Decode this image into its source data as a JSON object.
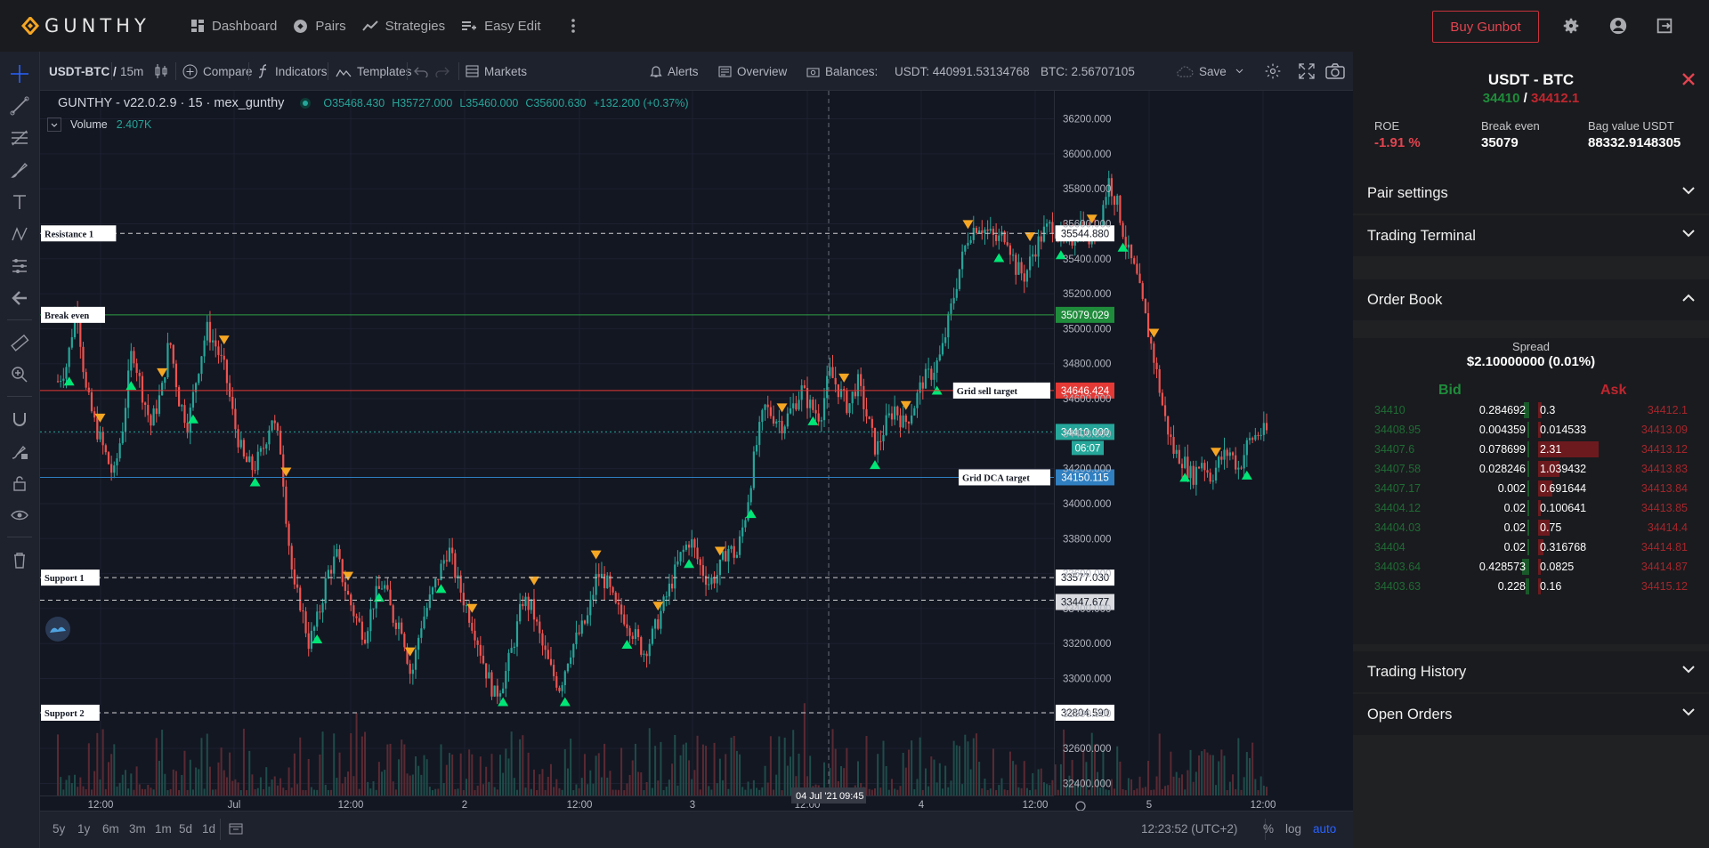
{
  "app": {
    "brand": "GUNTHY",
    "nav": [
      {
        "label": "Dashboard",
        "icon": "dashboard-icon"
      },
      {
        "label": "Pairs",
        "icon": "pairs-icon"
      },
      {
        "label": "Strategies",
        "icon": "strategies-icon"
      },
      {
        "label": "Easy Edit",
        "icon": "easy-edit-icon"
      }
    ],
    "buy_button": "Buy Gunbot",
    "colors": {
      "accent": "#f5a623",
      "bid": "#1f8c3b",
      "ask": "#c0262f",
      "bull": "#26a69a",
      "bear": "#ef5350"
    }
  },
  "toolbar": {
    "symbol": "USDT-BTC /",
    "interval": "15m",
    "compare": "Compare",
    "indicators": "Indicators",
    "templates": "Templates",
    "markets": "Markets",
    "alerts": "Alerts",
    "overview": "Overview",
    "balances": "Balances:",
    "balance_usdt": "USDT: 440991.53134768",
    "balance_btc": "BTC: 2.56707105",
    "save": "Save"
  },
  "legend": {
    "title": "GUNTHY - v22.0.2.9 · 15 · mex_gunthy",
    "open": "O35468.430",
    "high": "H35727.000",
    "low": "L35460.000",
    "close": "C35600.630",
    "change": "+132.200 (+0.37%)",
    "volume_label": "Volume",
    "volume_value": "2.407K"
  },
  "chart_data": {
    "type": "candlestick",
    "y_ticks": [
      "36200.000",
      "36000.000",
      "35800.000",
      "35600.000",
      "35400.000",
      "35200.000",
      "35000.000",
      "34800.000",
      "34600.000",
      "34400.000",
      "34200.000",
      "34000.000",
      "33800.000",
      "33600.000",
      "33400.000",
      "33200.000",
      "33000.000",
      "32800.000",
      "32600.000",
      "32400.000"
    ],
    "ylim": [
      32400,
      36200
    ],
    "x_ticks": [
      "12:00",
      "Jul",
      "12:00",
      "2",
      "12:00",
      "3",
      "12:00",
      "4",
      "12:00",
      "5",
      "12:00"
    ],
    "crosshair": {
      "date": "04 Jul '21",
      "time": "09:45"
    },
    "price_path": [
      [
        0,
        34700
      ],
      [
        0.5,
        34800
      ],
      [
        1,
        35150
      ],
      [
        1.5,
        34650
      ],
      [
        2,
        34450
      ],
      [
        2.5,
        34300
      ],
      [
        3,
        34150
      ],
      [
        3.5,
        34450
      ],
      [
        4,
        34900
      ],
      [
        4.5,
        34650
      ],
      [
        5,
        34450
      ],
      [
        5.6,
        34650
      ],
      [
        6,
        34950
      ],
      [
        6.5,
        34600
      ],
      [
        7,
        34450
      ],
      [
        7.5,
        34750
      ],
      [
        8,
        35000
      ],
      [
        8.5,
        34900
      ],
      [
        9,
        34750
      ],
      [
        9.5,
        34450
      ],
      [
        10,
        34250
      ],
      [
        10.5,
        34200
      ],
      [
        11,
        34300
      ],
      [
        11.5,
        34500
      ],
      [
        12,
        34300
      ],
      [
        12.3,
        33900
      ],
      [
        12.7,
        33500
      ],
      [
        13,
        33450
      ],
      [
        13.5,
        33200
      ],
      [
        14,
        33350
      ],
      [
        14.5,
        33600
      ],
      [
        15,
        33700
      ],
      [
        15.5,
        33500
      ],
      [
        16,
        33350
      ],
      [
        16.5,
        33250
      ],
      [
        17,
        33450
      ],
      [
        17.5,
        33550
      ],
      [
        18,
        33350
      ],
      [
        18.5,
        33300
      ],
      [
        19,
        33000
      ],
      [
        19.5,
        33300
      ],
      [
        20,
        33450
      ],
      [
        20.5,
        33600
      ],
      [
        21,
        33750
      ],
      [
        21.5,
        33550
      ],
      [
        22,
        33400
      ],
      [
        22.5,
        33250
      ],
      [
        23,
        33050
      ],
      [
        23.5,
        32900
      ],
      [
        24,
        33000
      ],
      [
        24.5,
        33200
      ],
      [
        25,
        33450
      ],
      [
        25.5,
        33400
      ],
      [
        26,
        33200
      ],
      [
        26.5,
        33050
      ],
      [
        27,
        32950
      ],
      [
        27.5,
        33150
      ],
      [
        28,
        33250
      ],
      [
        28.5,
        33350
      ],
      [
        29,
        33600
      ],
      [
        29.5,
        33550
      ],
      [
        30,
        33400
      ],
      [
        30.5,
        33350
      ],
      [
        31,
        33250
      ],
      [
        31.5,
        33150
      ],
      [
        32,
        33250
      ],
      [
        32.5,
        33400
      ],
      [
        33,
        33550
      ],
      [
        33.5,
        33700
      ],
      [
        34,
        33800
      ],
      [
        34.5,
        33650
      ],
      [
        35,
        33550
      ],
      [
        35.5,
        33600
      ],
      [
        36,
        33750
      ],
      [
        36.5,
        33700
      ],
      [
        37,
        33950
      ],
      [
        37.5,
        34300
      ],
      [
        38,
        34550
      ],
      [
        38.5,
        34500
      ],
      [
        39,
        34450
      ],
      [
        39.5,
        34550
      ],
      [
        40,
        34650
      ],
      [
        40.5,
        34550
      ],
      [
        41,
        34500
      ],
      [
        41.5,
        34750
      ],
      [
        42,
        34650
      ],
      [
        42.5,
        34550
      ],
      [
        43,
        34700
      ],
      [
        43.5,
        34500
      ],
      [
        44,
        34300
      ],
      [
        44.5,
        34450
      ],
      [
        45,
        34550
      ],
      [
        45.5,
        34450
      ],
      [
        46,
        34550
      ],
      [
        46.5,
        34700
      ],
      [
        47,
        34750
      ],
      [
        47.5,
        34850
      ],
      [
        48,
        35100
      ],
      [
        48.5,
        35350
      ],
      [
        49,
        35550
      ],
      [
        49.5,
        35600
      ],
      [
        50,
        35550
      ],
      [
        50.5,
        35500
      ],
      [
        51,
        35550
      ],
      [
        51.5,
        35350
      ],
      [
        52,
        35300
      ],
      [
        52.5,
        35450
      ],
      [
        53,
        35550
      ],
      [
        53.5,
        35600
      ],
      [
        54,
        35500
      ],
      [
        54.5,
        35500
      ],
      [
        55,
        35600
      ],
      [
        55.5,
        35500
      ],
      [
        56,
        35600
      ],
      [
        56.5,
        35850
      ],
      [
        57,
        35700
      ],
      [
        57.5,
        35450
      ],
      [
        58,
        35300
      ],
      [
        58.5,
        35050
      ],
      [
        59,
        34800
      ],
      [
        59.5,
        34500
      ],
      [
        60,
        34300
      ],
      [
        60.5,
        34250
      ],
      [
        61,
        34150
      ],
      [
        61.5,
        34250
      ],
      [
        62,
        34150
      ],
      [
        62.5,
        34250
      ],
      [
        63,
        34300
      ],
      [
        63.5,
        34200
      ],
      [
        64,
        34350
      ],
      [
        64.5,
        34400
      ],
      [
        65,
        34410
      ]
    ],
    "levels": [
      {
        "name": "Resistance 1",
        "value": "35544.880"
      },
      {
        "name": "Break even",
        "value": "35079.029"
      },
      {
        "name": "Grid sell target",
        "value": "34646.424"
      },
      {
        "name": "current price",
        "value": "34410.000",
        "countdown": "06:07"
      },
      {
        "name": "Grid DCA target",
        "value": "34150.115"
      },
      {
        "name": "Support 1",
        "value": "33577.030"
      },
      {
        "name": "",
        "value": "33447.677"
      },
      {
        "name": "Support 2",
        "value": "32804.590"
      }
    ]
  },
  "bottombar": {
    "ranges": [
      "5y",
      "1y",
      "6m",
      "3m",
      "1m",
      "5d",
      "1d"
    ],
    "clock": "12:23:52 (UTC+2)",
    "percent": "%",
    "log": "log",
    "auto": "auto"
  },
  "panel": {
    "pair": "USDT - BTC",
    "bid_price": "34410",
    "separator": "/",
    "ask_price": "34412.1",
    "roe_label": "ROE",
    "roe_value": "-1.91 %",
    "breakeven_label": "Break even",
    "breakeven_value": "35079",
    "bag_label": "Bag value USDT",
    "bag_value": "88332.9148305",
    "sections": {
      "pair_settings": "Pair settings",
      "trading_terminal": "Trading Terminal",
      "order_book": "Order Book",
      "trading_history": "Trading History",
      "open_orders": "Open Orders"
    },
    "order_book": {
      "spread_label": "Spread",
      "spread_value": "$2.10000000 (0.01%)",
      "bid_header": "Bid",
      "ask_header": "Ask",
      "rows": [
        {
          "bid": "34410",
          "bid_size": "0.284692",
          "ask_size": "0.3",
          "ask": "34412.1",
          "bid_frac": 0.07,
          "ask_frac": 0.05
        },
        {
          "bid": "34408.95",
          "bid_size": "0.004359",
          "ask_size": "0.014533",
          "ask": "34413.09",
          "bid_frac": 0.01,
          "ask_frac": 0.01
        },
        {
          "bid": "34407.6",
          "bid_size": "0.078699",
          "ask_size": "2.31",
          "ask": "34413.12",
          "bid_frac": 0.02,
          "ask_frac": 0.85
        },
        {
          "bid": "34407.58",
          "bid_size": "0.028246",
          "ask_size": "1.039432",
          "ask": "34413.83",
          "bid_frac": 0.01,
          "ask_frac": 0.3
        },
        {
          "bid": "34407.17",
          "bid_size": "0.002",
          "ask_size": "0.691644",
          "ask": "34413.84",
          "bid_frac": 0.01,
          "ask_frac": 0.2
        },
        {
          "bid": "34404.12",
          "bid_size": "0.02",
          "ask_size": "0.100641",
          "ask": "34413.85",
          "bid_frac": 0.01,
          "ask_frac": 0.03
        },
        {
          "bid": "34404.03",
          "bid_size": "0.02",
          "ask_size": "0.75",
          "ask": "34414.4",
          "bid_frac": 0.01,
          "ask_frac": 0.16
        },
        {
          "bid": "34404",
          "bid_size": "0.02",
          "ask_size": "0.316768",
          "ask": "34414.81",
          "bid_frac": 0.01,
          "ask_frac": 0.07
        },
        {
          "bid": "34403.64",
          "bid_size": "0.428573",
          "ask_size": "0.0825",
          "ask": "34414.87",
          "bid_frac": 0.1,
          "ask_frac": 0.02
        },
        {
          "bid": "34403.63",
          "bid_size": "0.228",
          "ask_size": "0.16",
          "ask": "34415.12",
          "bid_frac": 0.05,
          "ask_frac": 0.04
        }
      ]
    }
  }
}
